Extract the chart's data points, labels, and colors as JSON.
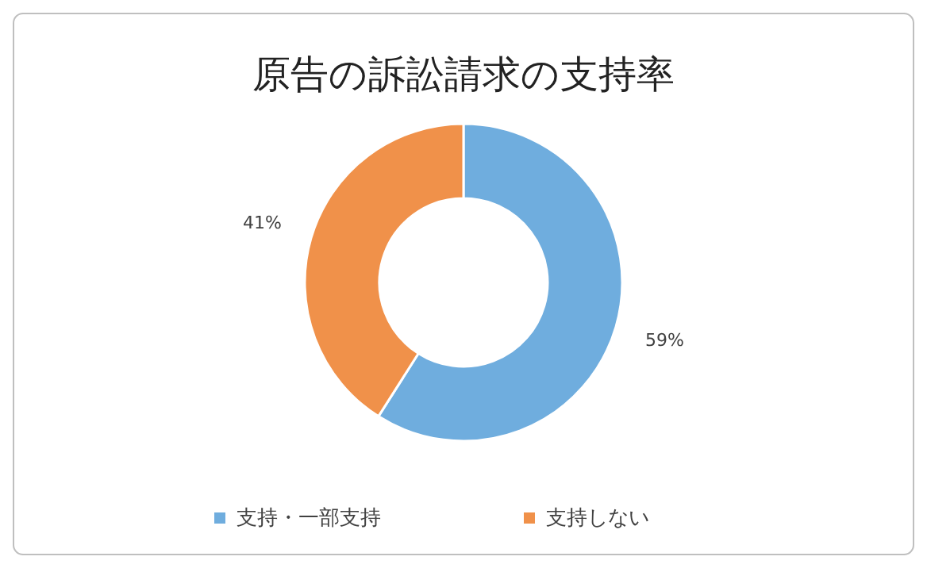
{
  "chart_data": {
    "type": "donut",
    "title": "原告の訴訟請求の支持率",
    "categories": [
      "支持・一部支持",
      "支持しない"
    ],
    "values": [
      59,
      41
    ],
    "colors": [
      "#6fadde",
      "#f0914a"
    ],
    "value_labels": [
      "59%",
      "41%"
    ],
    "legend": "bottom"
  }
}
